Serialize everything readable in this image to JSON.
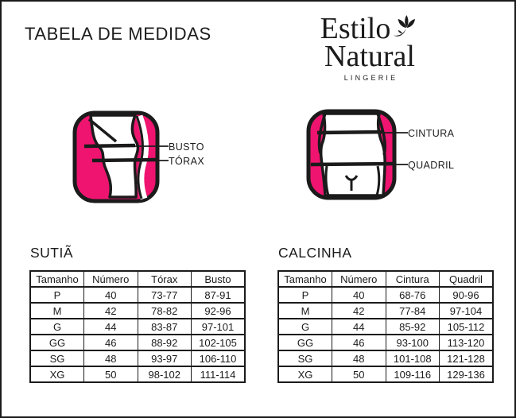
{
  "page": {
    "title": "TABELA DE MEDIDAS"
  },
  "logo": {
    "line1": "Estilo",
    "line2": "Natural",
    "subtitle": "LINGERIE",
    "icon": "lotus-flower-icon"
  },
  "colors": {
    "accent_pink": "#EF146F",
    "ink": "#1B1B1B",
    "background": "#FFFFFF"
  },
  "figures": {
    "bra": {
      "labels": [
        "BUSTO",
        "TÓRAX"
      ]
    },
    "panty": {
      "labels": [
        "CINTURA",
        "QUADRIL"
      ]
    }
  },
  "tables": {
    "sutia": {
      "heading": "SUTIÃ",
      "columns": [
        "Tamanho",
        "Número",
        "Tórax",
        "Busto"
      ],
      "rows": [
        [
          "P",
          "40",
          "73-77",
          "87-91"
        ],
        [
          "M",
          "42",
          "78-82",
          "92-96"
        ],
        [
          "G",
          "44",
          "83-87",
          "97-101"
        ],
        [
          "GG",
          "46",
          "88-92",
          "102-105"
        ],
        [
          "SG",
          "48",
          "93-97",
          "106-110"
        ],
        [
          "XG",
          "50",
          "98-102",
          "111-114"
        ]
      ]
    },
    "calcinha": {
      "heading": "CALCINHA",
      "columns": [
        "Tamanho",
        "Número",
        "Cintura",
        "Quadril"
      ],
      "rows": [
        [
          "P",
          "40",
          "68-76",
          "90-96"
        ],
        [
          "M",
          "42",
          "77-84",
          "97-104"
        ],
        [
          "G",
          "44",
          "85-92",
          "105-112"
        ],
        [
          "GG",
          "46",
          "93-100",
          "113-120"
        ],
        [
          "SG",
          "48",
          "101-108",
          "121-128"
        ],
        [
          "XG",
          "50",
          "109-116",
          "129-136"
        ]
      ]
    }
  }
}
